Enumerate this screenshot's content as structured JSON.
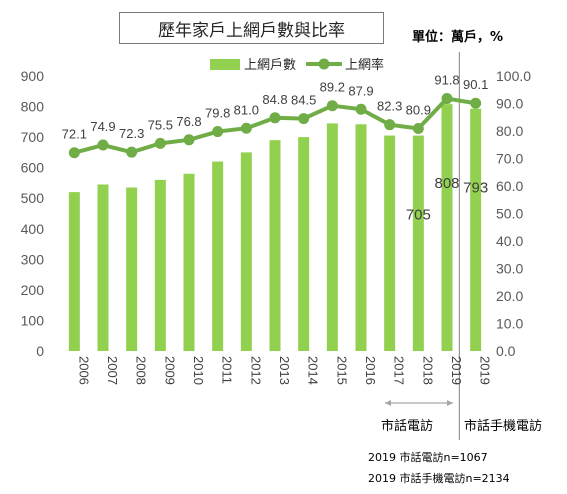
{
  "header": {
    "title": "歷年家戶上網戶數與比率",
    "unit": "單位：萬戶，%"
  },
  "chart_data": {
    "type": "bar",
    "categories": [
      "2006",
      "2007",
      "2008",
      "2009",
      "2010",
      "2011",
      "2012",
      "2013",
      "2014",
      "2015",
      "2016",
      "2017",
      "2018",
      "2019",
      "2019"
    ],
    "series": [
      {
        "name": "上網戶數",
        "type": "bar",
        "axis": "left",
        "color": "#92d050",
        "values": [
          520,
          545,
          535,
          560,
          580,
          620,
          650,
          690,
          700,
          745,
          742,
          705,
          705,
          808,
          793
        ],
        "labels": [
          "",
          "",
          "",
          "",
          "",
          "",
          "",
          "",
          "",
          "",
          "",
          "",
          "705",
          "808",
          "793"
        ]
      },
      {
        "name": "上網率",
        "type": "line",
        "axis": "right",
        "color": "#70ad47",
        "values": [
          72.1,
          74.9,
          72.3,
          75.5,
          76.8,
          79.8,
          81.0,
          84.8,
          84.5,
          89.2,
          87.9,
          82.3,
          80.9,
          91.8,
          90.1
        ],
        "labels": [
          "72.1",
          "74.9",
          "72.3",
          "75.5",
          "76.8",
          "79.8",
          "81.0",
          "84.8",
          "84.5",
          "89.2",
          "87.9",
          "82.3",
          "80.9",
          "91.8",
          "90.1"
        ]
      }
    ],
    "y_left": {
      "min": 0,
      "max": 900,
      "ticks": [
        "0",
        "100",
        "200",
        "300",
        "400",
        "500",
        "600",
        "700",
        "800",
        "900"
      ]
    },
    "y_right": {
      "min": 0,
      "max": 100,
      "ticks": [
        "0.0",
        "10.0",
        "20.0",
        "30.0",
        "40.0",
        "50.0",
        "60.0",
        "70.0",
        "80.0",
        "90.0",
        "100.0"
      ]
    },
    "legend_position": "top-center",
    "grid": false
  },
  "groups": {
    "left": "市話電訪",
    "right": "市話手機電訪"
  },
  "notes": [
    "2019 市話電訪n=1067",
    "2019 市話手機電訪n=2134"
  ]
}
